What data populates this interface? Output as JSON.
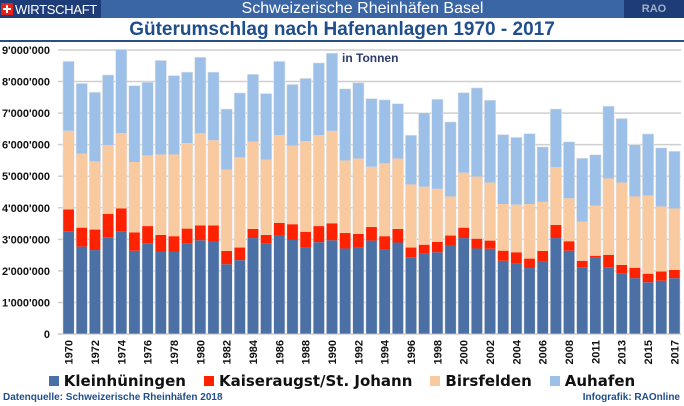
{
  "header": {
    "section_label": "WIRTSCHAFT",
    "flag_icon": "swiss-flag-icon",
    "banner_title": "Schweizerische Rheinhäfen Basel",
    "brand": "RAO"
  },
  "footer": {
    "source": "Datenquelle: Schweizerische Rheinhäfen 2018",
    "credit": "Infografik: RAOnline"
  },
  "chart_data": {
    "type": "bar",
    "stacked": true,
    "title": "Güterumschlag nach Hafenanlagen 1970 - 2017",
    "unit_label": "in Tonnen",
    "xlabel": "",
    "ylabel": "",
    "ylim": [
      0,
      9000000
    ],
    "yticks": [
      0,
      1000000,
      2000000,
      3000000,
      4000000,
      5000000,
      6000000,
      7000000,
      8000000,
      9000000
    ],
    "ytick_labels": [
      "0",
      "1'000'000",
      "2'000'000",
      "3'000'000",
      "4'000'000",
      "5'000'000",
      "6'000'000",
      "7'000'000",
      "8'000'000",
      "9'000'000"
    ],
    "grid": true,
    "legend_position": "bottom",
    "categories": [
      "1970",
      "1971",
      "1972",
      "1973",
      "1974",
      "1975",
      "1976",
      "1977",
      "1978",
      "1979",
      "1980",
      "1981",
      "1982",
      "1983",
      "1984",
      "1985",
      "1986",
      "1987",
      "1988",
      "1989",
      "1990",
      "1991",
      "1992",
      "1993",
      "1994",
      "1995",
      "1996",
      "1997",
      "1998",
      "1999",
      "2000",
      "2001",
      "2002",
      "2003",
      "2004",
      "2005",
      "2006",
      "2007",
      "2008",
      "2009",
      "2011",
      "2012",
      "2013",
      "2014",
      "2015",
      "2016",
      "2017"
    ],
    "xtick_labels_shown": [
      "1970",
      "1972",
      "1974",
      "1976",
      "1978",
      "1980",
      "1982",
      "1984",
      "1986",
      "1988",
      "1990",
      "1992",
      "1994",
      "1996",
      "1998",
      "2000",
      "2002",
      "2004",
      "2006",
      "2008",
      "2011",
      "2013",
      "2015",
      "2017"
    ],
    "series": [
      {
        "name": "Kleinhüningen",
        "color": "#4a70a6",
        "values": [
          3260000,
          2770000,
          2660000,
          3070000,
          3240000,
          2640000,
          2880000,
          2600000,
          2600000,
          2860000,
          2970000,
          2930000,
          2210000,
          2340000,
          3040000,
          2860000,
          3120000,
          2980000,
          2730000,
          2910000,
          2970000,
          2710000,
          2730000,
          2960000,
          2680000,
          2900000,
          2430000,
          2540000,
          2590000,
          2820000,
          3040000,
          2710000,
          2700000,
          2320000,
          2230000,
          2090000,
          2300000,
          3040000,
          2640000,
          2120000,
          2420000,
          2120000,
          1930000,
          1770000,
          1640000,
          1690000,
          1770000
        ]
      },
      {
        "name": "Kaiseraugst/St. Johann",
        "color": "#ff2200",
        "values": [
          690000,
          600000,
          650000,
          740000,
          740000,
          580000,
          540000,
          540000,
          500000,
          480000,
          470000,
          510000,
          420000,
          400000,
          290000,
          280000,
          400000,
          500000,
          510000,
          510000,
          540000,
          490000,
          440000,
          430000,
          420000,
          430000,
          310000,
          290000,
          330000,
          300000,
          330000,
          310000,
          260000,
          320000,
          360000,
          300000,
          330000,
          420000,
          300000,
          200000,
          60000,
          390000,
          260000,
          330000,
          270000,
          290000,
          260000
        ]
      },
      {
        "name": "Birsfelden",
        "color": "#f9c9a0",
        "values": [
          2490000,
          2350000,
          2160000,
          2180000,
          2390000,
          2230000,
          2240000,
          2550000,
          2590000,
          2710000,
          2920000,
          2700000,
          2580000,
          2860000,
          2770000,
          2390000,
          2780000,
          2490000,
          2870000,
          2880000,
          2930000,
          2300000,
          2390000,
          1910000,
          2310000,
          2230000,
          2000000,
          1840000,
          1680000,
          1240000,
          1740000,
          1970000,
          1840000,
          1480000,
          1510000,
          1730000,
          1560000,
          1830000,
          1360000,
          1240000,
          1590000,
          2420000,
          2610000,
          2260000,
          2480000,
          2060000,
          1950000
        ]
      },
      {
        "name": "Auhafen",
        "color": "#9dc0e8",
        "values": [
          2200000,
          2220000,
          2190000,
          2220000,
          2650000,
          2420000,
          2320000,
          2980000,
          2500000,
          2250000,
          2410000,
          2160000,
          1920000,
          2040000,
          2130000,
          2090000,
          2340000,
          1940000,
          1990000,
          2290000,
          2460000,
          2270000,
          2400000,
          2160000,
          2010000,
          1740000,
          1560000,
          2340000,
          2840000,
          2360000,
          2540000,
          2810000,
          2610000,
          2200000,
          2130000,
          2230000,
          1740000,
          1840000,
          1790000,
          2010000,
          1610000,
          2290000,
          2030000,
          1640000,
          1950000,
          1860000,
          1810000
        ]
      }
    ]
  }
}
